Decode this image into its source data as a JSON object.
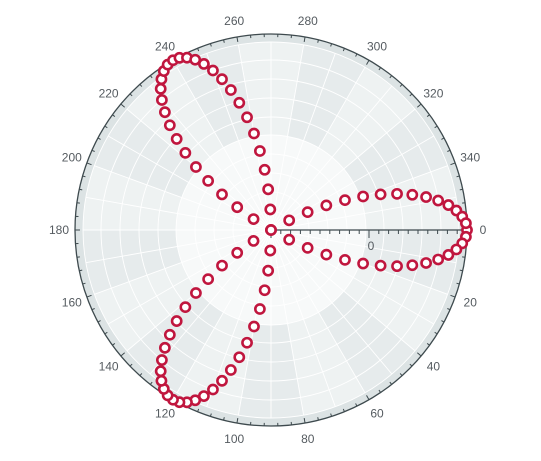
{
  "chart_data": {
    "type": "scatter",
    "coordinate_system": "polar",
    "title": "",
    "angle_unit": "degrees",
    "angle_direction": "clockwise",
    "angle_zero_at": "right",
    "angle_ticks": [
      0,
      20,
      40,
      60,
      80,
      100,
      120,
      140,
      160,
      180,
      200,
      220,
      240,
      260,
      280,
      300,
      320,
      340
    ],
    "radial_ticks": [
      0
    ],
    "radial_range": [
      -1,
      1
    ],
    "grid": true,
    "marker": "hollow-circle",
    "series": [
      {
        "color": "#c0163e",
        "angle_step_deg": 2,
        "theta": [
          0,
          2,
          4,
          6,
          8,
          10,
          12,
          14,
          16,
          18,
          20,
          22,
          24,
          26,
          28,
          30,
          32,
          34,
          36,
          38,
          40,
          42,
          44,
          46,
          48,
          50,
          52,
          54,
          56,
          58,
          60,
          62,
          64,
          66,
          68,
          70,
          72,
          74,
          76,
          78,
          80,
          82,
          84,
          86,
          88,
          90,
          92,
          94,
          96,
          98,
          100,
          102,
          104,
          106,
          108,
          110,
          112,
          114,
          116,
          118,
          120,
          122,
          124,
          126,
          128,
          130,
          132,
          134,
          136,
          138,
          140,
          142,
          144,
          146,
          148,
          150,
          152,
          154,
          156,
          158,
          160,
          162,
          164,
          166,
          168,
          170,
          172,
          174,
          176,
          178
        ],
        "r": [
          1.0,
          0.995,
          0.978,
          0.951,
          0.914,
          0.866,
          0.809,
          0.743,
          0.669,
          0.588,
          0.5,
          0.407,
          0.309,
          0.208,
          0.105,
          0.0,
          -0.105,
          -0.208,
          -0.309,
          -0.407,
          -0.5,
          -0.588,
          -0.669,
          -0.743,
          -0.809,
          -0.866,
          -0.914,
          -0.951,
          -0.978,
          -0.995,
          -1.0,
          -0.995,
          -0.978,
          -0.951,
          -0.914,
          -0.866,
          -0.809,
          -0.743,
          -0.669,
          -0.588,
          -0.5,
          -0.407,
          -0.309,
          -0.208,
          -0.105,
          0.0,
          0.105,
          0.208,
          0.309,
          0.407,
          0.5,
          0.588,
          0.669,
          0.743,
          0.809,
          0.866,
          0.914,
          0.951,
          0.978,
          0.995,
          1.0,
          0.995,
          0.978,
          0.951,
          0.914,
          0.866,
          0.809,
          0.743,
          0.669,
          0.588,
          0.5,
          0.407,
          0.309,
          0.208,
          0.105,
          0.0,
          -0.105,
          -0.208,
          -0.309,
          -0.407,
          -0.5,
          -0.588,
          -0.669,
          -0.743,
          -0.809,
          -0.866,
          -0.914,
          -0.951,
          -0.978,
          -0.995
        ]
      }
    ]
  },
  "colors": {
    "outer_ring": "#dce3e4",
    "band_dark": "#e6ebec",
    "band_light": "#eef2f2",
    "inner_fill": "#f7f9f9",
    "grid_line": "#ffffff",
    "axis_line": "#3e4a4e",
    "marker_stroke": "#c0163e"
  }
}
